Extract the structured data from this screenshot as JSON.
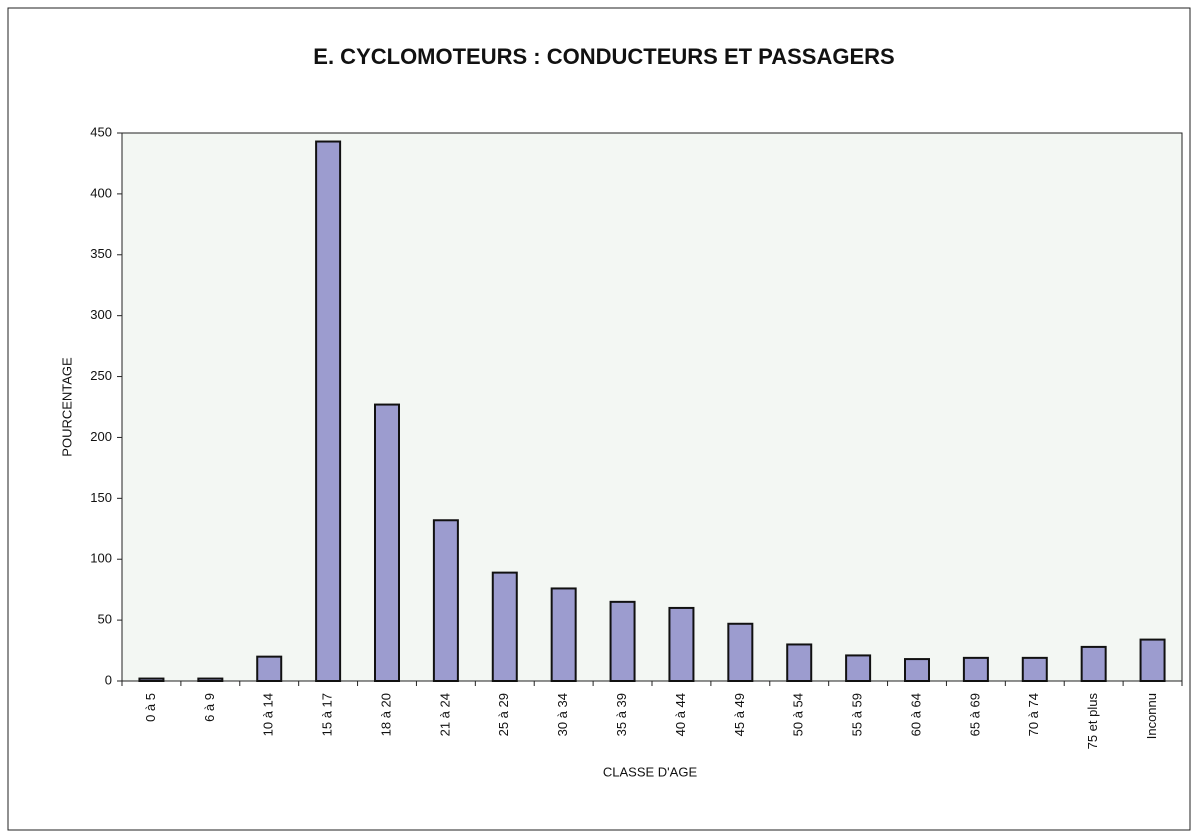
{
  "chart_data": {
    "type": "bar",
    "title": "E. CYCLOMOTEURS : CONDUCTEURS ET PASSAGERS",
    "x_label": "CLASSE D'AGE",
    "y_label": "POURCENTAGE",
    "categories": [
      "0 à 5",
      "6 à 9",
      "10 à 14",
      "15 à 17",
      "18 à 20",
      "21 à 24",
      "25 à 29",
      "30 à 34",
      "35 à 39",
      "40 à 44",
      "45 à 49",
      "50 à 54",
      "55 à 59",
      "60 à 64",
      "65 à 69",
      "70 à 74",
      "75 et plus",
      "Inconnu"
    ],
    "values": [
      2,
      2,
      20,
      443,
      227,
      132,
      89,
      76,
      65,
      60,
      47,
      30,
      21,
      18,
      19,
      19,
      28,
      34
    ],
    "color": "#9c9ccf",
    "ylim": [
      0,
      450
    ],
    "yticks": [
      0,
      50,
      100,
      150,
      200,
      250,
      300,
      350,
      400,
      450
    ],
    "grid": false
  }
}
